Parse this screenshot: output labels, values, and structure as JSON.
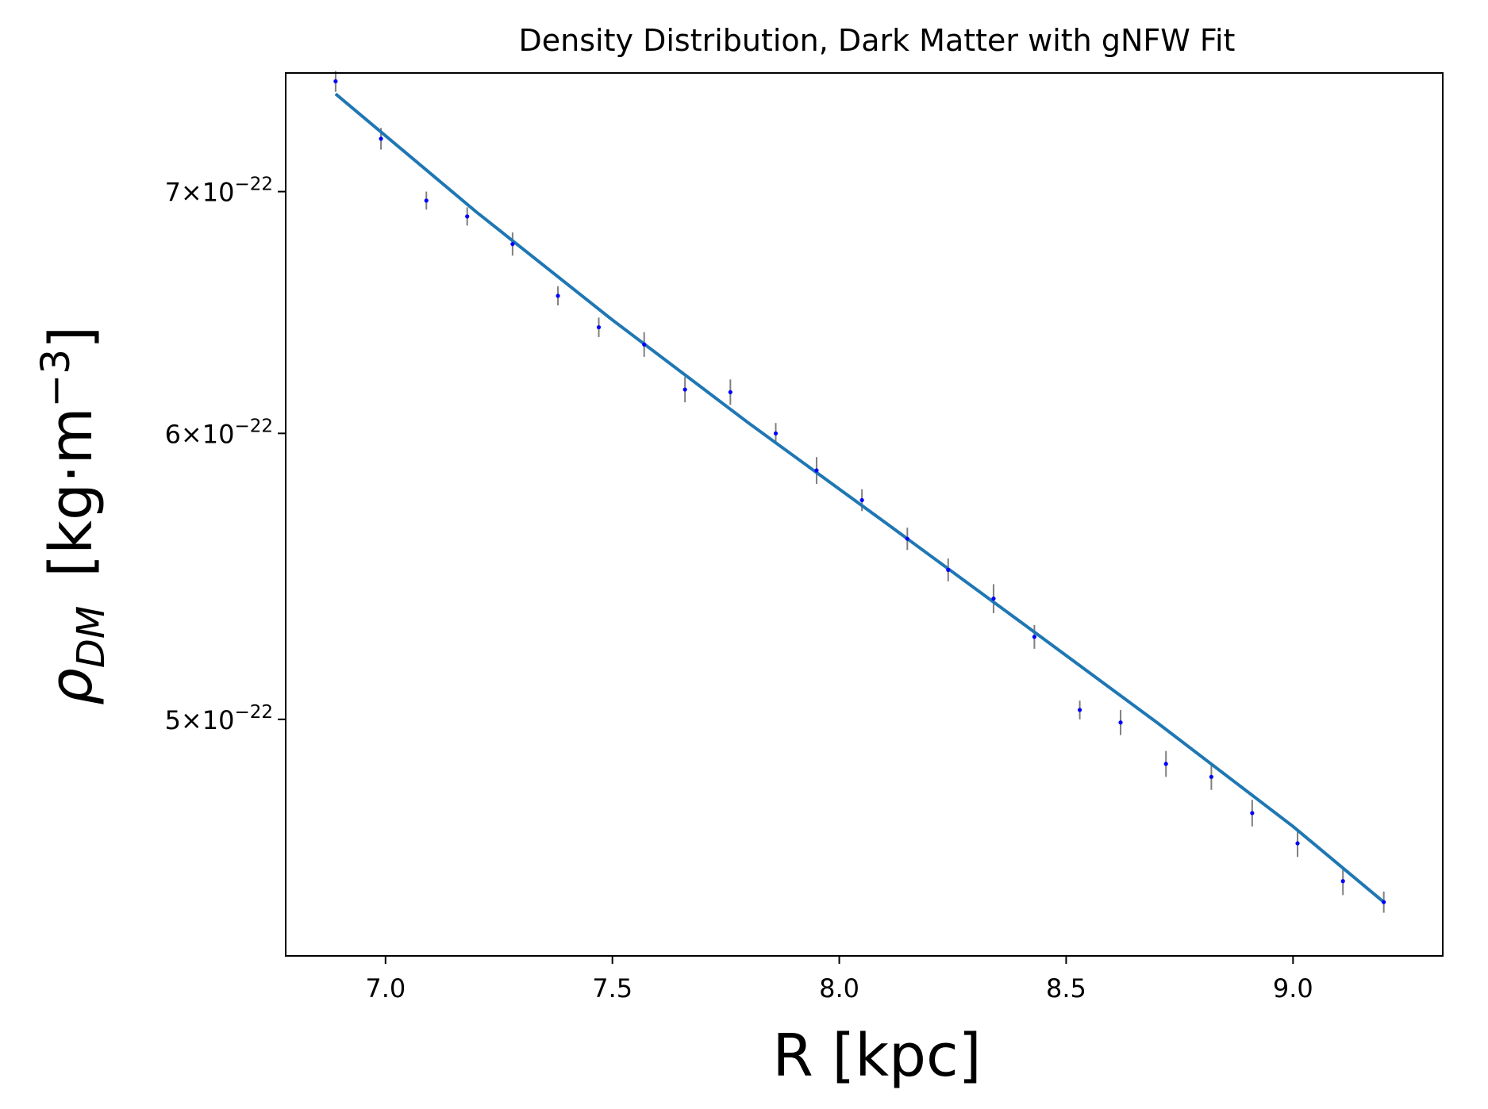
{
  "chart_data": {
    "type": "scatter",
    "title": "Density Distribution, Dark Matter with gNFW Fit",
    "xlabel": "R [kpc]",
    "ylabel": {
      "symbol": "ρ",
      "subscript": "DM",
      "unit_open": "[kg·m",
      "unit_exp": "−3",
      "unit_close": "]"
    },
    "xlim": [
      6.78,
      9.33
    ],
    "ylim": [
      4.3e-22,
      7.55e-22
    ],
    "y_scale": "log",
    "grid": false,
    "x_ticks": [
      {
        "value": 7.0,
        "label": "7.0"
      },
      {
        "value": 7.5,
        "label": "7.5"
      },
      {
        "value": 8.0,
        "label": "8.0"
      },
      {
        "value": 8.5,
        "label": "8.5"
      },
      {
        "value": 9.0,
        "label": "9.0"
      }
    ],
    "y_ticks": [
      {
        "value": 5e-22,
        "mantissa": "5",
        "exponent": "−22"
      },
      {
        "value": 6e-22,
        "mantissa": "6",
        "exponent": "−22"
      },
      {
        "value": 7e-22,
        "mantissa": "7",
        "exponent": "−22"
      }
    ],
    "series": [
      {
        "kind": "errorbar",
        "marker_color": "#0000ff",
        "errorbar_color": "#808080",
        "x": [
          6.89,
          6.99,
          7.09,
          7.18,
          7.28,
          7.38,
          7.47,
          7.57,
          7.66,
          7.76,
          7.86,
          7.95,
          8.05,
          8.15,
          8.24,
          8.34,
          8.43,
          8.53,
          8.62,
          8.72,
          8.82,
          8.91,
          9.01,
          9.11,
          9.2
        ],
        "y": [
          7.51e-22,
          7.24e-22,
          6.96e-22,
          6.89e-22,
          6.77e-22,
          6.55e-22,
          6.42e-22,
          6.35e-22,
          6.17e-22,
          6.16e-22,
          6e-22,
          5.86e-22,
          5.75e-22,
          5.61e-22,
          5.5e-22,
          5.4e-22,
          5.27e-22,
          5.03e-22,
          4.99e-22,
          4.86e-22,
          4.82e-22,
          4.71e-22,
          4.62e-22,
          4.51e-22,
          4.45e-22
        ],
        "yerr": [
          5e-24,
          5e-24,
          4e-24,
          4e-24,
          5e-24,
          4e-24,
          4e-24,
          5e-24,
          5e-24,
          5e-24,
          4e-24,
          5e-24,
          4e-24,
          4e-24,
          4e-24,
          5e-24,
          4e-24,
          3e-24,
          4e-24,
          4e-24,
          4e-24,
          4e-24,
          4e-24,
          4e-24,
          3e-24
        ]
      },
      {
        "kind": "line",
        "color": "#1f77b4",
        "x": [
          6.89,
          7.2,
          7.5,
          7.8,
          8.1,
          8.4,
          8.7,
          9.0,
          9.2
        ],
        "y": [
          7.45e-22,
          6.91e-22,
          6.45e-22,
          6.04e-22,
          5.67e-22,
          5.32e-22,
          4.99e-22,
          4.67e-22,
          4.45e-22
        ]
      }
    ]
  }
}
